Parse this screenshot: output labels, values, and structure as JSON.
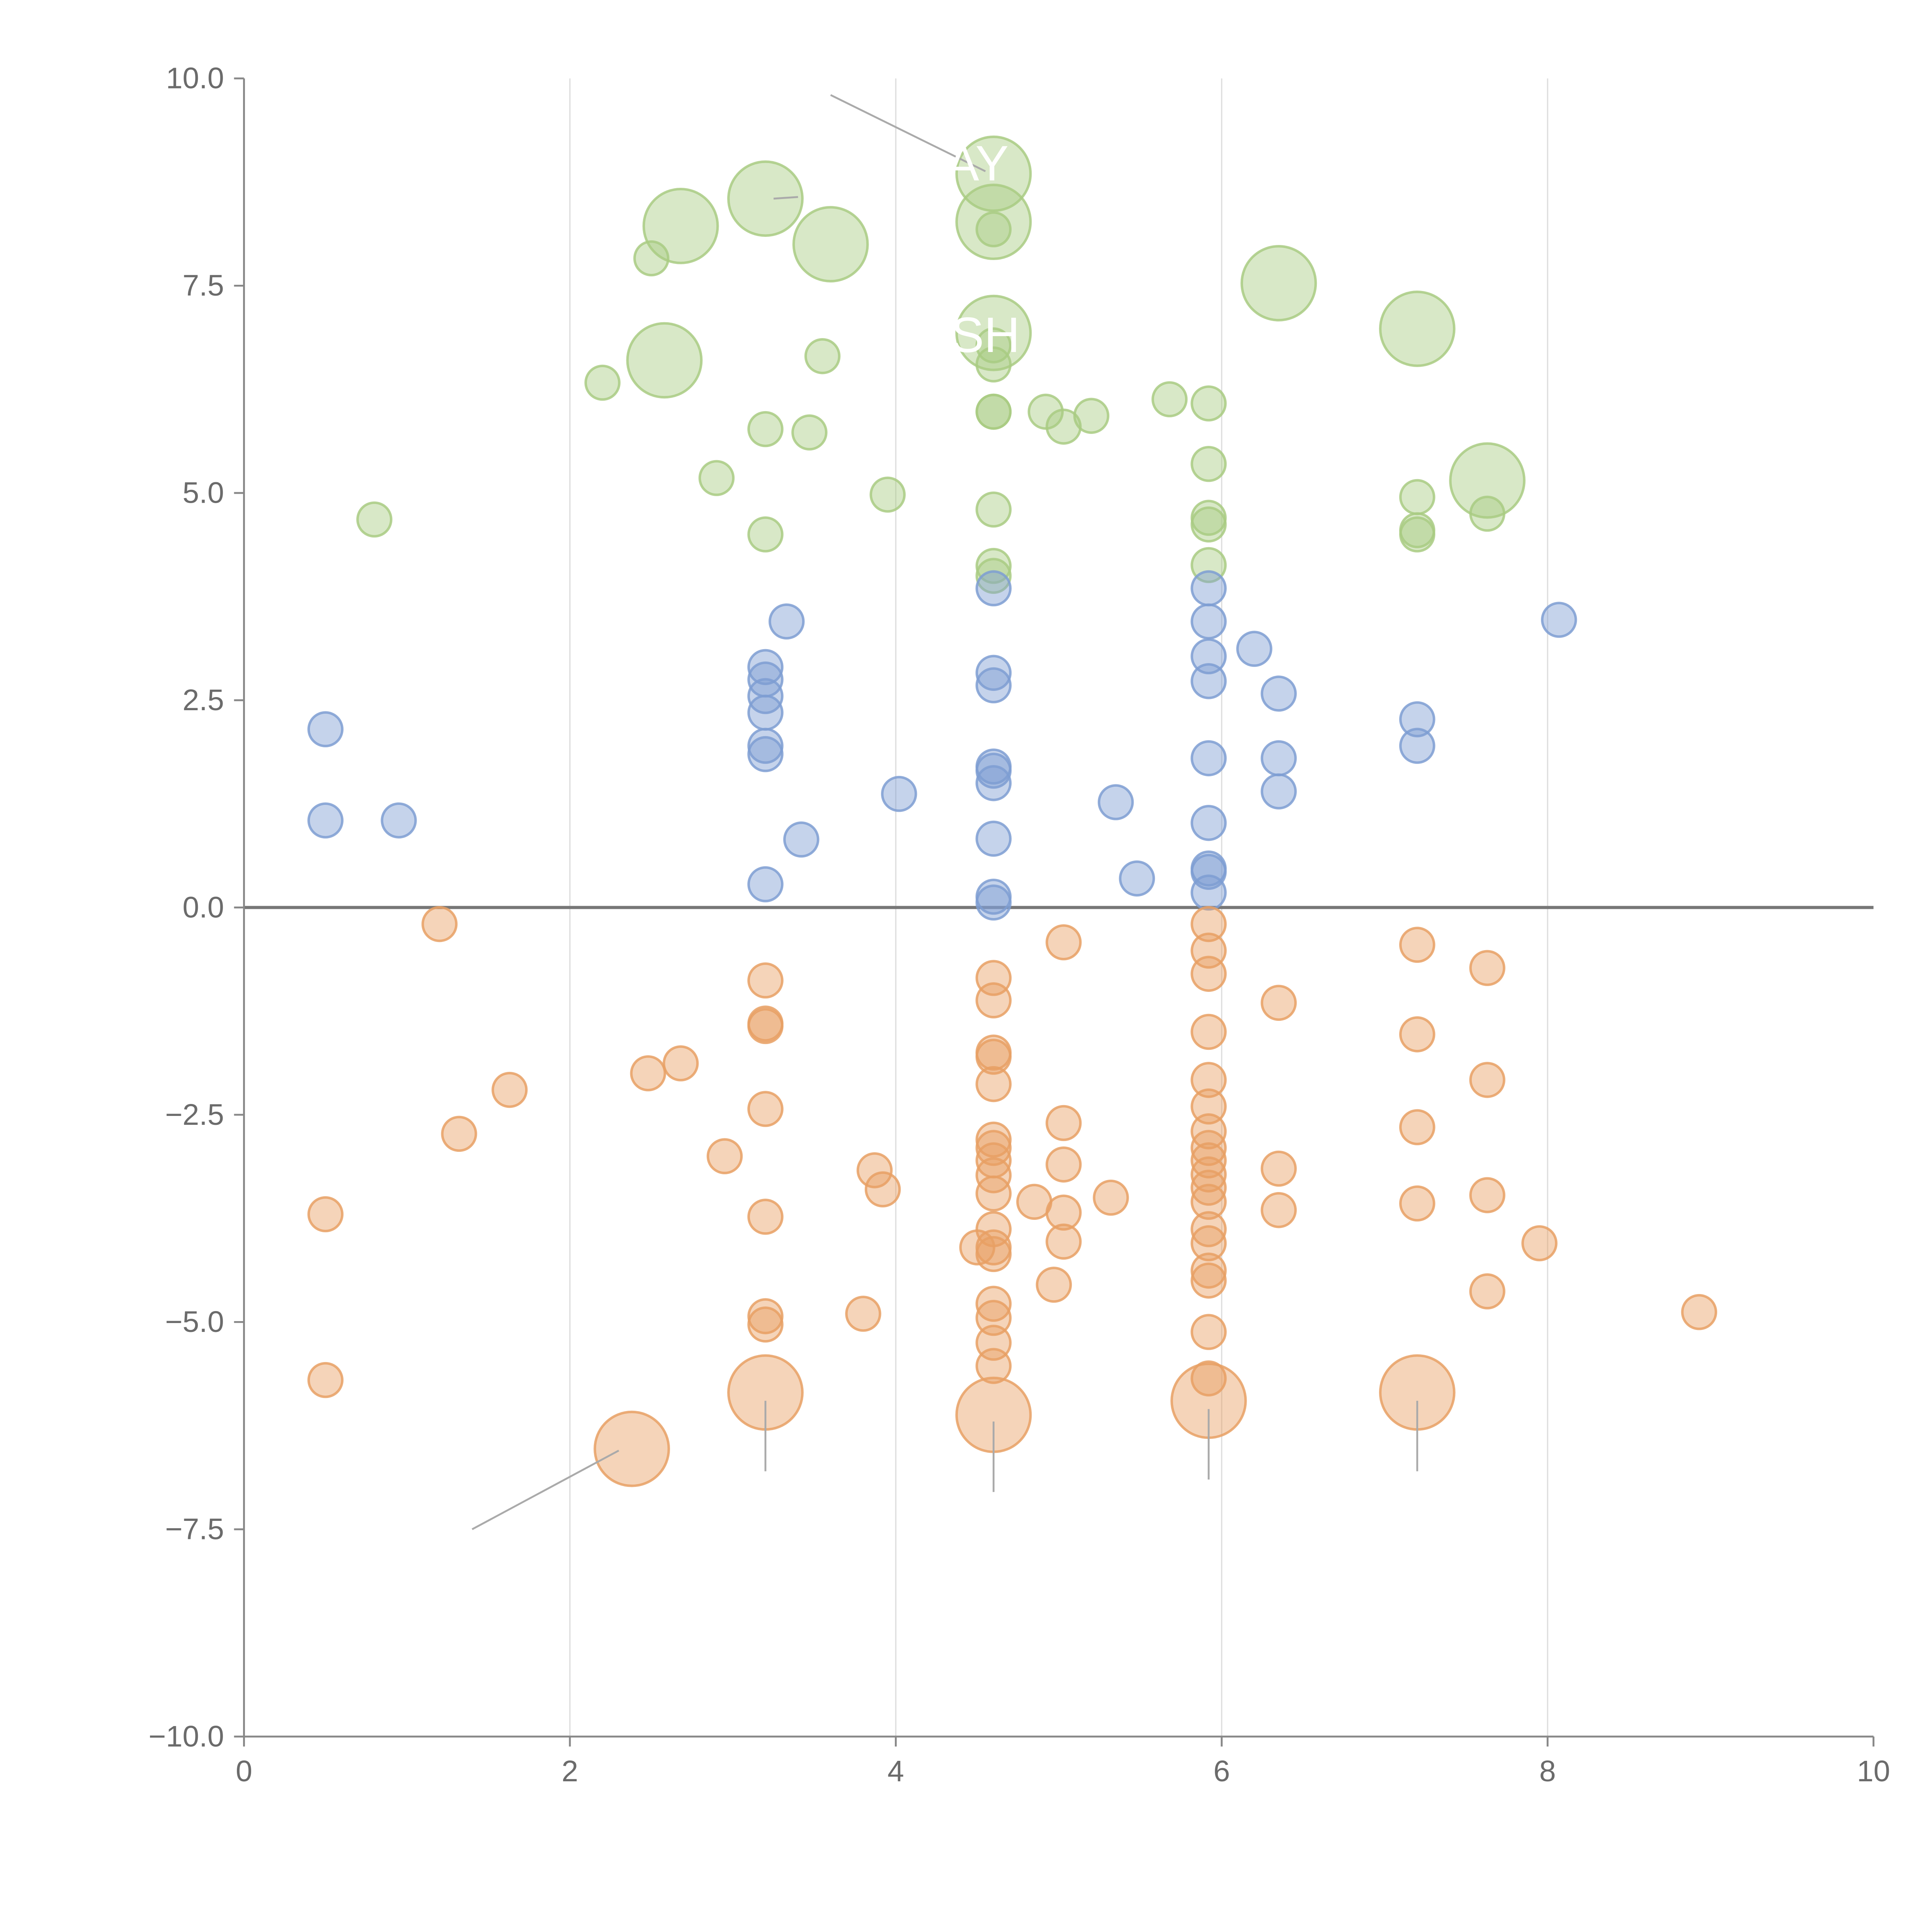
{
  "chart_data": {
    "type": "scatter",
    "title": "",
    "xlabel": "",
    "ylabel": "",
    "xlim": [
      0,
      10
    ],
    "ylim": [
      -10,
      10
    ],
    "x_ticks": [
      "0",
      "2",
      "4",
      "6",
      "8",
      "10"
    ],
    "y_ticks": [
      "−10.0",
      "−7.5",
      "−5.0",
      "−2.5",
      "0.0",
      "2.5",
      "5.0",
      "7.5",
      "10.0"
    ],
    "grid": "vertical lines at x = 2, 4, 6, 8",
    "zero_line": 0,
    "colors": {
      "green": "#a9cb82",
      "blue": "#7e9ed2",
      "orange": "#e8a064"
    },
    "series": [
      {
        "name": "green",
        "points": [
          [
            0.8,
            4.68,
            1
          ],
          [
            2.2,
            6.33,
            1
          ],
          [
            2.5,
            7.83,
            1
          ],
          [
            2.9,
            5.18,
            1
          ],
          [
            3.2,
            5.77,
            1
          ],
          [
            3.2,
            4.5,
            1
          ],
          [
            3.47,
            5.73,
            1
          ],
          [
            3.55,
            6.65,
            1
          ],
          [
            3.95,
            4.98,
            1
          ],
          [
            4.6,
            8.18,
            1
          ],
          [
            4.6,
            6.78,
            1
          ],
          [
            4.6,
            6.55,
            1
          ],
          [
            4.6,
            5.98,
            1
          ],
          [
            4.6,
            5.98,
            1
          ],
          [
            4.6,
            4.8,
            1
          ],
          [
            4.6,
            4.12,
            1
          ],
          [
            4.6,
            4.0,
            1
          ],
          [
            4.92,
            5.98,
            1
          ],
          [
            5.03,
            5.8,
            1
          ],
          [
            5.2,
            5.93,
            1
          ],
          [
            5.68,
            6.13,
            1
          ],
          [
            5.92,
            6.08,
            1
          ],
          [
            5.92,
            5.35,
            1
          ],
          [
            5.92,
            4.7,
            1
          ],
          [
            5.92,
            4.62,
            1
          ],
          [
            5.92,
            4.13,
            1
          ],
          [
            7.2,
            4.95,
            1
          ],
          [
            7.2,
            4.55,
            1
          ],
          [
            7.2,
            4.5,
            1
          ],
          [
            7.63,
            4.75,
            1
          ],
          [
            2.58,
            6.6,
            2.2
          ],
          [
            2.68,
            8.22,
            2.2
          ],
          [
            3.2,
            8.55,
            2.2
          ],
          [
            3.6,
            8.0,
            2.2
          ],
          [
            4.6,
            8.85,
            2.2
          ],
          [
            4.6,
            8.27,
            2.2
          ],
          [
            4.6,
            6.93,
            2.2
          ],
          [
            6.35,
            7.53,
            2.2
          ],
          [
            7.2,
            6.98,
            2.2
          ],
          [
            7.63,
            5.15,
            2.2
          ]
        ]
      },
      {
        "name": "blue",
        "points": [
          [
            0.5,
            2.15,
            1
          ],
          [
            0.5,
            1.05,
            1
          ],
          [
            0.95,
            1.05,
            1
          ],
          [
            3.2,
            2.9,
            1
          ],
          [
            3.2,
            2.75,
            1
          ],
          [
            3.2,
            2.55,
            1
          ],
          [
            3.2,
            2.35,
            1
          ],
          [
            3.2,
            1.95,
            1
          ],
          [
            3.2,
            1.85,
            1
          ],
          [
            3.2,
            0.28,
            1
          ],
          [
            3.33,
            3.45,
            1
          ],
          [
            3.42,
            0.82,
            1
          ],
          [
            4.02,
            1.37,
            1
          ],
          [
            4.6,
            3.85,
            1
          ],
          [
            4.6,
            2.83,
            1
          ],
          [
            4.6,
            2.68,
            1
          ],
          [
            4.6,
            1.7,
            1
          ],
          [
            4.6,
            1.65,
            1
          ],
          [
            4.6,
            1.5,
            1
          ],
          [
            4.6,
            0.83,
            1
          ],
          [
            4.6,
            0.13,
            1
          ],
          [
            4.6,
            0.06,
            1
          ],
          [
            5.35,
            1.27,
            1
          ],
          [
            5.48,
            0.35,
            1
          ],
          [
            5.92,
            3.85,
            1
          ],
          [
            5.92,
            3.45,
            1
          ],
          [
            5.92,
            3.03,
            1
          ],
          [
            5.92,
            2.73,
            1
          ],
          [
            5.92,
            1.8,
            1
          ],
          [
            5.92,
            1.02,
            1
          ],
          [
            5.92,
            0.47,
            1
          ],
          [
            5.92,
            0.43,
            1
          ],
          [
            5.92,
            0.18,
            1
          ],
          [
            6.2,
            3.12,
            1
          ],
          [
            6.35,
            2.58,
            1
          ],
          [
            6.35,
            1.8,
            1
          ],
          [
            6.35,
            1.4,
            1
          ],
          [
            7.2,
            2.27,
            1
          ],
          [
            7.2,
            1.95,
            1
          ],
          [
            8.07,
            3.47,
            1
          ]
        ]
      },
      {
        "name": "orange",
        "points": [
          [
            0.5,
            -3.7,
            1
          ],
          [
            0.5,
            -5.7,
            1
          ],
          [
            1.2,
            -0.2,
            1
          ],
          [
            1.32,
            -2.73,
            1
          ],
          [
            1.63,
            -2.2,
            1
          ],
          [
            2.48,
            -2.0,
            1
          ],
          [
            2.68,
            -1.88,
            1
          ],
          [
            2.95,
            -3.0,
            1
          ],
          [
            3.2,
            -0.88,
            1
          ],
          [
            3.2,
            -1.4,
            1
          ],
          [
            3.2,
            -1.43,
            1
          ],
          [
            3.2,
            -2.43,
            1
          ],
          [
            3.2,
            -3.73,
            1
          ],
          [
            3.2,
            -4.93,
            1
          ],
          [
            3.2,
            -5.03,
            1
          ],
          [
            3.8,
            -4.9,
            1
          ],
          [
            3.87,
            -3.17,
            1
          ],
          [
            3.92,
            -3.4,
            1
          ],
          [
            4.6,
            -0.85,
            1
          ],
          [
            4.6,
            -1.12,
            1
          ],
          [
            4.6,
            -1.75,
            1
          ],
          [
            4.6,
            -1.8,
            1
          ],
          [
            4.6,
            -2.13,
            1
          ],
          [
            4.6,
            -2.8,
            1
          ],
          [
            4.6,
            -2.9,
            1
          ],
          [
            4.6,
            -3.05,
            1
          ],
          [
            4.6,
            -3.23,
            1
          ],
          [
            4.6,
            -3.45,
            1
          ],
          [
            4.6,
            -3.88,
            1
          ],
          [
            4.6,
            -4.1,
            1
          ],
          [
            4.6,
            -4.18,
            1
          ],
          [
            4.6,
            -4.78,
            1
          ],
          [
            4.6,
            -4.95,
            1
          ],
          [
            4.6,
            -5.25,
            1
          ],
          [
            4.6,
            -5.53,
            1
          ],
          [
            4.5,
            -4.1,
            1
          ],
          [
            4.85,
            -3.55,
            1
          ],
          [
            4.97,
            -4.55,
            1
          ],
          [
            5.03,
            -0.42,
            1
          ],
          [
            5.03,
            -2.6,
            1
          ],
          [
            5.03,
            -3.1,
            1
          ],
          [
            5.03,
            -3.68,
            1
          ],
          [
            5.03,
            -4.03,
            1
          ],
          [
            5.32,
            -3.5,
            1
          ],
          [
            5.92,
            -0.2,
            1
          ],
          [
            5.92,
            -0.52,
            1
          ],
          [
            5.92,
            -0.8,
            1
          ],
          [
            5.92,
            -1.5,
            1
          ],
          [
            5.92,
            -2.08,
            1
          ],
          [
            5.92,
            -2.4,
            1
          ],
          [
            5.92,
            -2.7,
            1
          ],
          [
            5.92,
            -2.9,
            1
          ],
          [
            5.92,
            -3.05,
            1
          ],
          [
            5.92,
            -3.22,
            1
          ],
          [
            5.92,
            -3.38,
            1
          ],
          [
            5.92,
            -3.55,
            1
          ],
          [
            5.92,
            -3.88,
            1
          ],
          [
            5.92,
            -4.05,
            1
          ],
          [
            5.92,
            -4.38,
            1
          ],
          [
            5.92,
            -4.5,
            1
          ],
          [
            5.92,
            -5.12,
            1
          ],
          [
            5.92,
            -5.68,
            1
          ],
          [
            6.35,
            -1.15,
            1
          ],
          [
            6.35,
            -3.15,
            1
          ],
          [
            6.35,
            -3.65,
            1
          ],
          [
            7.2,
            -0.45,
            1
          ],
          [
            7.2,
            -1.53,
            1
          ],
          [
            7.2,
            -2.65,
            1
          ],
          [
            7.2,
            -3.57,
            1
          ],
          [
            7.63,
            -0.73,
            1
          ],
          [
            7.63,
            -2.08,
            1
          ],
          [
            7.63,
            -3.47,
            1
          ],
          [
            7.63,
            -4.63,
            1
          ],
          [
            7.95,
            -4.05,
            1
          ],
          [
            8.93,
            -4.88,
            1
          ],
          [
            2.38,
            -6.53,
            2.2
          ],
          [
            3.2,
            -5.85,
            2.2
          ],
          [
            4.6,
            -6.12,
            2.2
          ],
          [
            5.92,
            -5.95,
            2.2
          ],
          [
            7.2,
            -5.85,
            2.2
          ]
        ]
      }
    ],
    "annotations": [
      {
        "text": "AY",
        "x": 4.5,
        "y": 8.77
      },
      {
        "text": "SH",
        "x": 4.55,
        "y": 6.7
      }
    ],
    "leader_lines": [
      [
        3.6,
        9.8,
        4.55,
        8.88
      ],
      [
        3.25,
        8.55,
        3.4,
        8.57
      ],
      [
        1.4,
        -7.5,
        2.3,
        -6.55
      ],
      [
        3.2,
        -5.95,
        3.2,
        -6.8
      ],
      [
        4.6,
        -6.2,
        4.6,
        -7.05
      ],
      [
        5.92,
        -6.05,
        5.92,
        -6.9
      ],
      [
        7.2,
        -5.95,
        7.2,
        -6.8
      ]
    ]
  }
}
